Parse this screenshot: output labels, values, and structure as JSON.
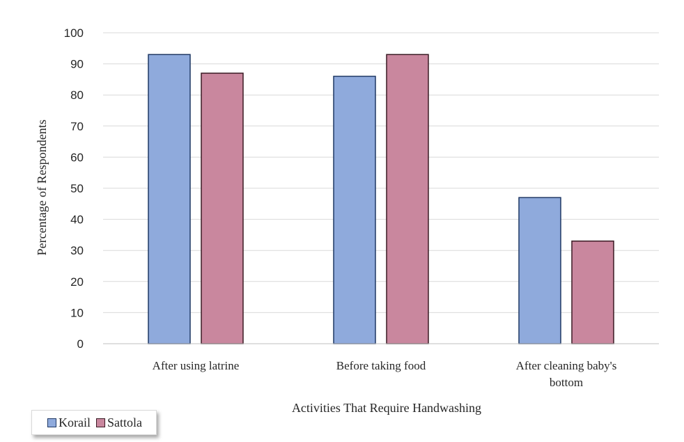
{
  "chart_data": {
    "type": "bar",
    "categories": [
      [
        "After using latrine"
      ],
      [
        "Before taking food"
      ],
      [
        "After cleaning baby's",
        "bottom"
      ]
    ],
    "series": [
      {
        "name": "Korail",
        "values": [
          93,
          86,
          47
        ],
        "color": "#8faadc",
        "stroke": "#1f3864"
      },
      {
        "name": "Sattola",
        "values": [
          87,
          93,
          33
        ],
        "color": "#c9879e",
        "stroke": "#3a1a24"
      }
    ],
    "xlabel": "Activities That Require Handwashing",
    "ylabel": "Percentage of Respondents",
    "ylim": [
      0,
      100
    ],
    "yticks": [
      "0",
      "10",
      "20",
      "30",
      "40",
      "50",
      "60",
      "70",
      "80",
      "90",
      "100"
    ],
    "grid": true,
    "legend_position": "bottom-left"
  }
}
